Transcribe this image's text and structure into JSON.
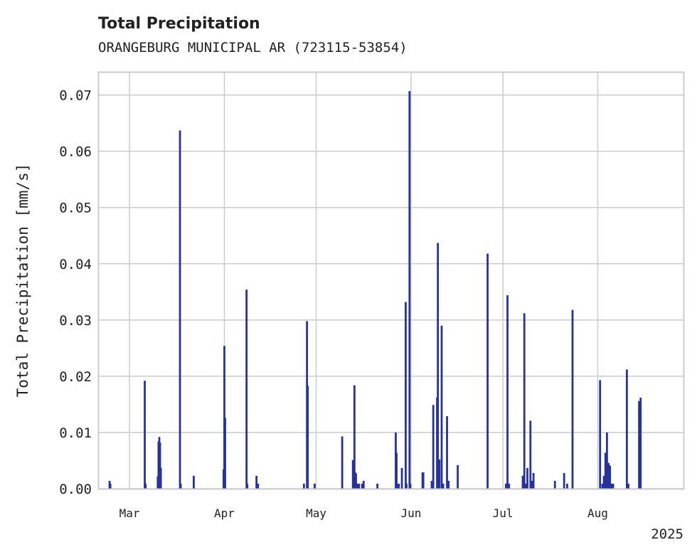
{
  "chart_data": {
    "type": "bar",
    "title": "Total Precipitation",
    "subtitle": "ORANGEBURG MUNICIPAL AR (723115-53854)",
    "ylabel": "Total Precipitation [mm/s]",
    "xlabel": "",
    "year_label": "2025",
    "ylim": [
      0,
      0.074
    ],
    "xlim": [
      "2025-02-19",
      "2025-08-29"
    ],
    "grid": true,
    "bar_color": "#26339a",
    "y_ticks": [
      "0.00",
      "0.01",
      "0.02",
      "0.03",
      "0.04",
      "0.05",
      "0.06",
      "0.07"
    ],
    "x_ticks": [
      {
        "label": "Mar",
        "date": "2025-03-01"
      },
      {
        "label": "Apr",
        "date": "2025-04-01"
      },
      {
        "label": "May",
        "date": "2025-05-01"
      },
      {
        "label": "Jun",
        "date": "2025-06-01"
      },
      {
        "label": "Jul",
        "date": "2025-07-01"
      },
      {
        "label": "Aug",
        "date": "2025-08-01"
      }
    ],
    "x": [
      "2025-02-22T12:00",
      "2025-02-22T18:00",
      "2025-03-06T00:00",
      "2025-03-06T06:00",
      "2025-03-10T06:00",
      "2025-03-10T12:00",
      "2025-03-10T18:00",
      "2025-03-11T00:00",
      "2025-03-11T06:00",
      "2025-03-17T12:00",
      "2025-03-17T18:00",
      "2025-03-22T00:00",
      "2025-03-31T18:00",
      "2025-04-01T00:00",
      "2025-04-01T06:00",
      "2025-04-08T06:00",
      "2025-04-08T12:00",
      "2025-04-11T12:00",
      "2025-04-12T00:00",
      "2025-04-27T00:00",
      "2025-04-28T00:00",
      "2025-04-28T06:00",
      "2025-04-30T12:00",
      "2025-05-09T12:00",
      "2025-05-13T00:00",
      "2025-05-13T12:00",
      "2025-05-13T18:00",
      "2025-05-14T00:00",
      "2025-05-14T12:00",
      "2025-05-15T00:00",
      "2025-05-16T00:00",
      "2025-05-16T12:00",
      "2025-05-21T00:00",
      "2025-05-27T00:00",
      "2025-05-27T06:00",
      "2025-05-27T12:00",
      "2025-05-28T00:00",
      "2025-05-29T00:00",
      "2025-05-30T06:00",
      "2025-05-30T12:00",
      "2025-05-31T12:00",
      "2025-05-31T18:00",
      "2025-06-04T18:00",
      "2025-06-05T00:00",
      "2025-06-07T18:00",
      "2025-06-08T06:00",
      "2025-06-09T12:00",
      "2025-06-09T18:00",
      "2025-06-10T06:00",
      "2025-06-11T00:00",
      "2025-06-11T12:00",
      "2025-06-12T18:00",
      "2025-06-13T06:00",
      "2025-06-16T06:00",
      "2025-06-26T00:00",
      "2025-07-02T00:00",
      "2025-07-02T12:00",
      "2025-07-03T00:00",
      "2025-07-07T12:00",
      "2025-07-08T00:00",
      "2025-07-08T12:00",
      "2025-07-09T00:00",
      "2025-07-10T00:00",
      "2025-07-10T12:00",
      "2025-07-11T00:00",
      "2025-07-18T00:00",
      "2025-07-21T00:00",
      "2025-07-22T00:00",
      "2025-07-23T18:00",
      "2025-08-01T18:00",
      "2025-08-02T12:00",
      "2025-08-03T00:00",
      "2025-08-03T12:00",
      "2025-08-04T00:00",
      "2025-08-04T12:00",
      "2025-08-05T00:00",
      "2025-08-05T12:00",
      "2025-08-06T00:00",
      "2025-08-10T12:00",
      "2025-08-11T00:00",
      "2025-08-14T12:00",
      "2025-08-15T00:00"
    ],
    "values": [
      0.0014,
      0.0009,
      0.0192,
      0.0009,
      0.0022,
      0.0084,
      0.0092,
      0.0082,
      0.0037,
      0.0637,
      0.0009,
      0.0023,
      0.0034,
      0.0254,
      0.0126,
      0.0354,
      0.0009,
      0.0023,
      0.0009,
      0.0009,
      0.0298,
      0.0183,
      0.0009,
      0.0093,
      0.0051,
      0.0184,
      0.0029,
      0.0027,
      0.0009,
      0.0009,
      0.0009,
      0.0014,
      0.0009,
      0.01,
      0.0064,
      0.0009,
      0.0009,
      0.0037,
      0.0332,
      0.0009,
      0.0707,
      0.0009,
      0.0029,
      0.0029,
      0.0014,
      0.0149,
      0.0162,
      0.0437,
      0.0052,
      0.029,
      0.0009,
      0.0129,
      0.0014,
      0.0042,
      0.0418,
      0.0009,
      0.0344,
      0.0009,
      0.0023,
      0.0312,
      0.0009,
      0.0037,
      0.0121,
      0.0014,
      0.0028,
      0.0014,
      0.0028,
      0.0009,
      0.0318,
      0.0193,
      0.0009,
      0.0023,
      0.0064,
      0.01,
      0.0046,
      0.0041,
      0.0009,
      0.0009,
      0.0212,
      0.0009,
      0.0156,
      0.0162
    ]
  }
}
